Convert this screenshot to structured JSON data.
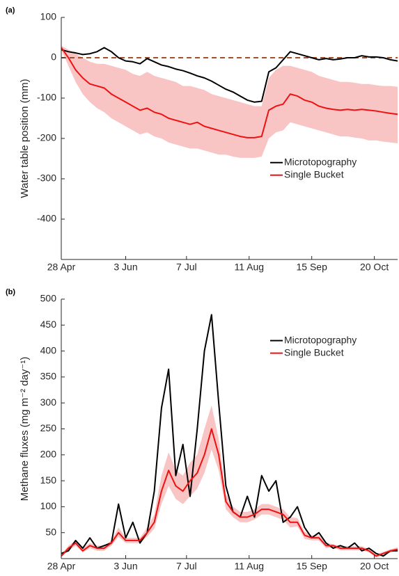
{
  "chart_data": [
    {
      "type": "line",
      "title": "(a)",
      "ylabel": "Water table position (mm)",
      "x": [
        118,
        122,
        126,
        130,
        134,
        138,
        142,
        146,
        150,
        154,
        158,
        162,
        166,
        170,
        174,
        178,
        182,
        186,
        190,
        194,
        198,
        202,
        206,
        210,
        214,
        218,
        222,
        226,
        230,
        234,
        238,
        242,
        246,
        250,
        254,
        258,
        262,
        266,
        270,
        274,
        278,
        282,
        286,
        290,
        294,
        298,
        302,
        306
      ],
      "xlim": [
        118,
        306
      ],
      "xticks": [
        {
          "value": 118,
          "label": "28 Apr"
        },
        {
          "value": 154,
          "label": "3 Jun"
        },
        {
          "value": 188,
          "label": "7 Jul"
        },
        {
          "value": 223,
          "label": "11 Aug"
        },
        {
          "value": 258,
          "label": "15 Sep"
        },
        {
          "value": 293,
          "label": "20 Oct"
        }
      ],
      "ylim": [
        -500,
        100
      ],
      "yticks": [
        -400,
        -300,
        -200,
        -100,
        0,
        100
      ],
      "legend": "center right",
      "reference_line": {
        "value": 0,
        "color": "#a0522d"
      },
      "band": {
        "color": "#f9c4c4",
        "upper": [
          30,
          20,
          10,
          0,
          -10,
          -15,
          -15,
          -20,
          -25,
          -30,
          -40,
          -45,
          -35,
          -45,
          -50,
          -55,
          -60,
          -70,
          -70,
          -75,
          -80,
          -90,
          -95,
          -100,
          -105,
          -110,
          -115,
          -120,
          -120,
          -50,
          -30,
          -20,
          -20,
          -25,
          -30,
          -35,
          -45,
          -50,
          -55,
          -60,
          -60,
          -62,
          -65,
          -65,
          -68,
          -70,
          -70,
          -72
        ],
        "lower": [
          20,
          -20,
          -60,
          -90,
          -110,
          -125,
          -135,
          -150,
          -160,
          -170,
          -180,
          -190,
          -185,
          -195,
          -200,
          -210,
          -215,
          -220,
          -225,
          -225,
          -230,
          -235,
          -240,
          -240,
          -245,
          -248,
          -248,
          -248,
          -245,
          -200,
          -185,
          -180,
          -160,
          -165,
          -170,
          -175,
          -180,
          -185,
          -190,
          -195,
          -195,
          -198,
          -200,
          -205,
          -205,
          -208,
          -210,
          -212
        ]
      },
      "series": [
        {
          "name": "Microtopography",
          "color": "#000000",
          "values": [
            20,
            15,
            12,
            8,
            10,
            15,
            25,
            15,
            0,
            -8,
            -10,
            -15,
            -2,
            -10,
            -18,
            -22,
            -28,
            -32,
            -38,
            -45,
            -50,
            -58,
            -68,
            -78,
            -85,
            -95,
            -105,
            -110,
            -108,
            -35,
            -25,
            -5,
            15,
            10,
            5,
            0,
            -5,
            -2,
            -5,
            -3,
            0,
            0,
            5,
            2,
            2,
            0,
            -5,
            -8
          ]
        },
        {
          "name": "Single Bucket",
          "color": "#ee1111",
          "values": [
            25,
            0,
            -30,
            -50,
            -65,
            -70,
            -75,
            -90,
            -100,
            -110,
            -120,
            -130,
            -125,
            -135,
            -140,
            -150,
            -155,
            -160,
            -165,
            -160,
            -170,
            -175,
            -180,
            -185,
            -190,
            -195,
            -198,
            -198,
            -195,
            -130,
            -120,
            -115,
            -90,
            -95,
            -105,
            -110,
            -120,
            -125,
            -128,
            -130,
            -128,
            -130,
            -128,
            -130,
            -132,
            -135,
            -138,
            -140
          ]
        }
      ]
    },
    {
      "type": "line",
      "title": "(b)",
      "ylabel": "Methane fluxes (mg m⁻² day⁻¹)",
      "x": [
        118,
        122,
        126,
        130,
        134,
        138,
        142,
        146,
        150,
        154,
        158,
        162,
        166,
        170,
        174,
        178,
        182,
        186,
        190,
        194,
        198,
        202,
        206,
        210,
        214,
        218,
        222,
        226,
        230,
        234,
        238,
        242,
        246,
        250,
        254,
        258,
        262,
        266,
        270,
        274,
        278,
        282,
        286,
        290,
        294,
        298,
        302,
        306
      ],
      "xlim": [
        118,
        306
      ],
      "xticks": [
        {
          "value": 118,
          "label": "28 Apr"
        },
        {
          "value": 154,
          "label": "3 Jun"
        },
        {
          "value": 188,
          "label": "7 Jul"
        },
        {
          "value": 223,
          "label": "11 Aug"
        },
        {
          "value": 258,
          "label": "15 Sep"
        },
        {
          "value": 293,
          "label": "20 Oct"
        }
      ],
      "ylim": [
        0,
        500
      ],
      "yticks": [
        50,
        100,
        150,
        200,
        250,
        300,
        350,
        400,
        450,
        500
      ],
      "legend": "upper right",
      "band": {
        "color": "#f9c4c4",
        "upper": [
          8,
          25,
          35,
          20,
          30,
          25,
          25,
          35,
          60,
          40,
          40,
          40,
          60,
          85,
          160,
          205,
          170,
          160,
          185,
          200,
          250,
          295,
          230,
          125,
          100,
          90,
          90,
          95,
          105,
          105,
          100,
          95,
          80,
          78,
          52,
          45,
          45,
          30,
          28,
          24,
          24,
          24,
          24,
          18,
          8,
          13,
          18,
          22
        ],
        "lower": [
          3,
          15,
          25,
          12,
          20,
          15,
          15,
          25,
          42,
          30,
          30,
          30,
          42,
          58,
          105,
          140,
          115,
          105,
          120,
          135,
          165,
          210,
          170,
          95,
          80,
          70,
          70,
          75,
          85,
          85,
          80,
          75,
          60,
          62,
          38,
          35,
          35,
          20,
          22,
          16,
          16,
          16,
          16,
          12,
          2,
          7,
          12,
          14
        ]
      },
      "series": [
        {
          "name": "Microtopography",
          "color": "#000000",
          "values": [
            10,
            15,
            35,
            20,
            40,
            20,
            25,
            30,
            105,
            40,
            70,
            30,
            50,
            130,
            290,
            365,
            160,
            220,
            120,
            250,
            400,
            470,
            300,
            140,
            90,
            80,
            120,
            80,
            160,
            130,
            150,
            70,
            80,
            100,
            60,
            40,
            50,
            30,
            20,
            25,
            20,
            30,
            15,
            20,
            10,
            5,
            15,
            15
          ]
        },
        {
          "name": "Single Bucket",
          "color": "#ee1111",
          "values": [
            5,
            20,
            30,
            15,
            25,
            20,
            20,
            30,
            50,
            35,
            35,
            35,
            50,
            70,
            130,
            170,
            140,
            130,
            150,
            165,
            200,
            250,
            200,
            110,
            90,
            80,
            80,
            85,
            95,
            95,
            90,
            85,
            70,
            70,
            45,
            40,
            40,
            25,
            25,
            20,
            20,
            20,
            20,
            15,
            5,
            10,
            15,
            18
          ]
        }
      ]
    }
  ]
}
